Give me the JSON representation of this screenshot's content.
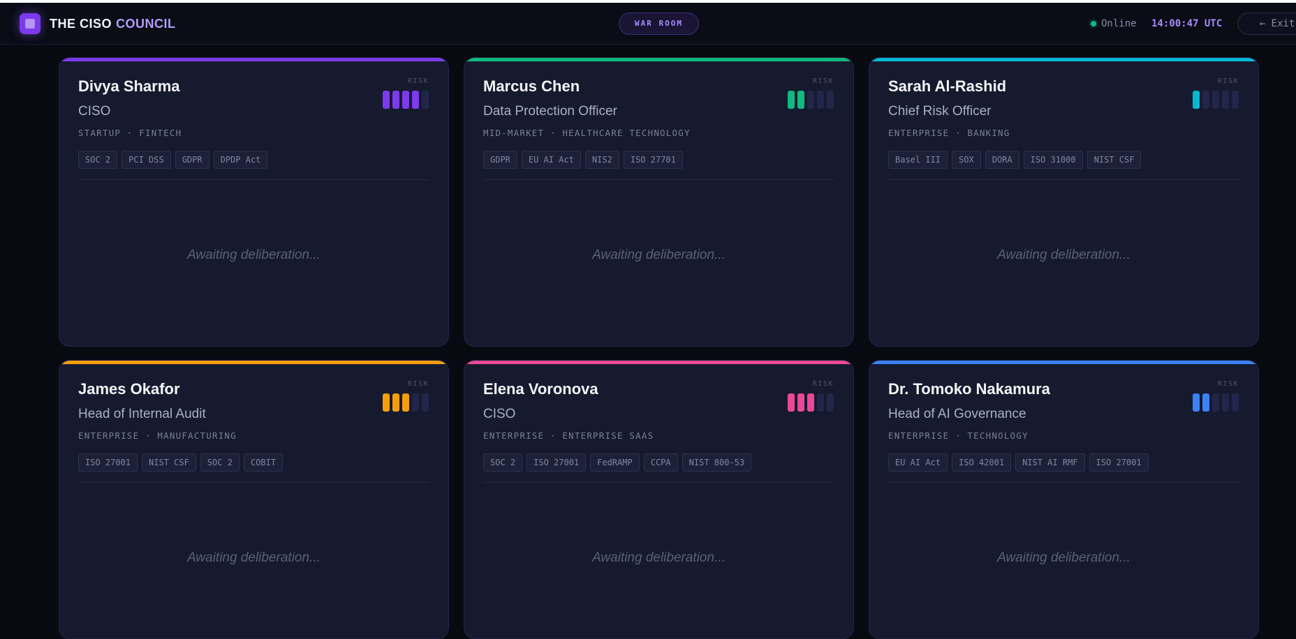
{
  "header": {
    "brand_primary": "THE CISO",
    "brand_accent": "COUNCIL",
    "badge": "WAR ROOM",
    "status": "Online",
    "clock": "14:00:47 UTC",
    "exit_label": "← Exit",
    "logo_icon": "council-logo-icon"
  },
  "risk_label": "RISK",
  "awaiting_text": "Awaiting deliberation...",
  "cards": [
    {
      "name": "Divya Sharma",
      "role": "CISO",
      "meta": "STARTUP · FINTECH",
      "tags": [
        "SOC 2",
        "PCI DSS",
        "GDPR",
        "DPDP Act"
      ],
      "accent": "#7c3aed",
      "risk_level": 4,
      "risk_max": 5
    },
    {
      "name": "Marcus Chen",
      "role": "Data Protection Officer",
      "meta": "MID-MARKET · HEALTHCARE TECHNOLOGY",
      "tags": [
        "GDPR",
        "EU AI Act",
        "NIS2",
        "ISO 27701"
      ],
      "accent": "#10b981",
      "risk_level": 2,
      "risk_max": 5
    },
    {
      "name": "Sarah Al-Rashid",
      "role": "Chief Risk Officer",
      "meta": "ENTERPRISE · BANKING",
      "tags": [
        "Basel III",
        "SOX",
        "DORA",
        "ISO 31000",
        "NIST CSF"
      ],
      "accent": "#06b6d4",
      "risk_level": 1,
      "risk_max": 5
    },
    {
      "name": "James Okafor",
      "role": "Head of Internal Audit",
      "meta": "ENTERPRISE · MANUFACTURING",
      "tags": [
        "ISO 27001",
        "NIST CSF",
        "SOC 2",
        "COBIT"
      ],
      "accent": "#f59e0b",
      "risk_level": 3,
      "risk_max": 5
    },
    {
      "name": "Elena Voronova",
      "role": "CISO",
      "meta": "ENTERPRISE · ENTERPRISE SAAS",
      "tags": [
        "SOC 2",
        "ISO 27001",
        "FedRAMP",
        "CCPA",
        "NIST 800-53"
      ],
      "accent": "#ec4899",
      "risk_level": 3,
      "risk_max": 5
    },
    {
      "name": "Dr. Tomoko Nakamura",
      "role": "Head of AI Governance",
      "meta": "ENTERPRISE · TECHNOLOGY",
      "tags": [
        "EU AI Act",
        "ISO 42001",
        "NIST AI RMF",
        "ISO 27001"
      ],
      "accent": "#3b82f6",
      "risk_level": 2,
      "risk_max": 5
    }
  ]
}
